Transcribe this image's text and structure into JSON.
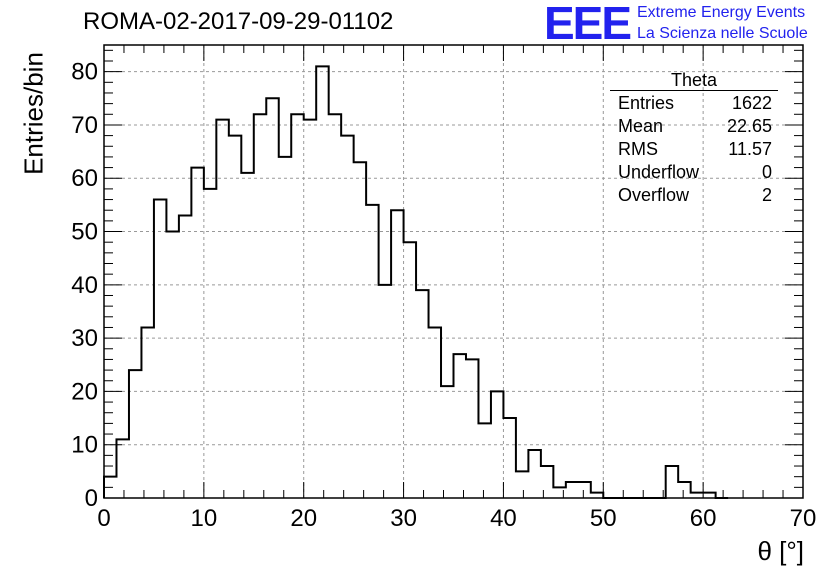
{
  "header": {
    "title": "ROMA-02-2017-09-29-01102",
    "logo_text": "EEE",
    "logo_line1": "Extreme Energy Events",
    "logo_line2": "La Scienza nelle Scuole",
    "logo_color": "#2222ee"
  },
  "stats_box": {
    "title": "Theta",
    "rows": [
      {
        "label": "Entries",
        "value": "1622"
      },
      {
        "label": "Mean",
        "value": "22.65"
      },
      {
        "label": "RMS",
        "value": "11.57"
      },
      {
        "label": "Underflow",
        "value": "0"
      },
      {
        "label": "Overflow",
        "value": "2"
      }
    ]
  },
  "chart_data": {
    "type": "bar",
    "histogram": true,
    "xlabel": "θ [°]",
    "ylabel": "Entries/bin",
    "xlim": [
      0,
      70
    ],
    "ylim": [
      0,
      85
    ],
    "bin_width": 1.25,
    "x_ticks": [
      0,
      10,
      20,
      30,
      40,
      50,
      60,
      70
    ],
    "y_ticks": [
      0,
      10,
      20,
      30,
      40,
      50,
      60,
      70,
      80
    ],
    "grid": true,
    "values": [
      4,
      11,
      24,
      32,
      56,
      50,
      53,
      62,
      58,
      71,
      68,
      61,
      72,
      75,
      64,
      72,
      71,
      81,
      72,
      68,
      63,
      55,
      40,
      54,
      48,
      39,
      32,
      21,
      27,
      26,
      14,
      20,
      15,
      5,
      9,
      6,
      2,
      3,
      3,
      1,
      0,
      0,
      0,
      0,
      0,
      6,
      3,
      1,
      1,
      0
    ]
  }
}
